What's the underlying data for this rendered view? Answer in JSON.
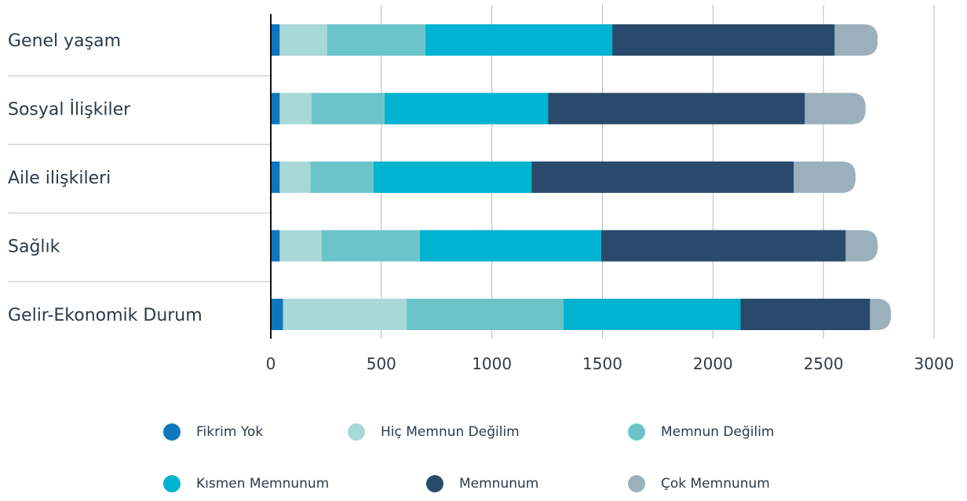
{
  "chart_data": {
    "type": "bar",
    "orientation": "horizontal",
    "stacked": true,
    "categories": [
      "Genel yaşam",
      "Sosyal İlişkiler",
      "Aile ilişkileri",
      "Sağlık",
      "Gelir-Ekonomik Durum"
    ],
    "series": [
      {
        "name": "Fikrim Yok",
        "color": "#0f75bc",
        "values": [
          40,
          40,
          40,
          40,
          55
        ]
      },
      {
        "name": "Hiç Memnun Değilim",
        "color": "#a8d8d8",
        "values": [
          215,
          145,
          140,
          190,
          560
        ]
      },
      {
        "name": "Memnun Değilim",
        "color": "#6cc4cb",
        "values": [
          445,
          330,
          285,
          445,
          710
        ]
      },
      {
        "name": "Kısmen Memnunum",
        "color": "#00b3d0",
        "values": [
          845,
          740,
          715,
          820,
          800
        ]
      },
      {
        "name": "Memnunum",
        "color": "#2a4a6b",
        "values": [
          1005,
          1160,
          1185,
          1105,
          585
        ]
      },
      {
        "name": "Çok Memnunum",
        "color": "#9bb0bd",
        "values": [
          195,
          275,
          280,
          145,
          95
        ]
      }
    ],
    "x_ticks": [
      "0",
      "500",
      "1000",
      "1500",
      "2000",
      "2500",
      "3000"
    ],
    "xlim": [
      0,
      3000
    ],
    "grid": true,
    "legend_position": "bottom"
  }
}
